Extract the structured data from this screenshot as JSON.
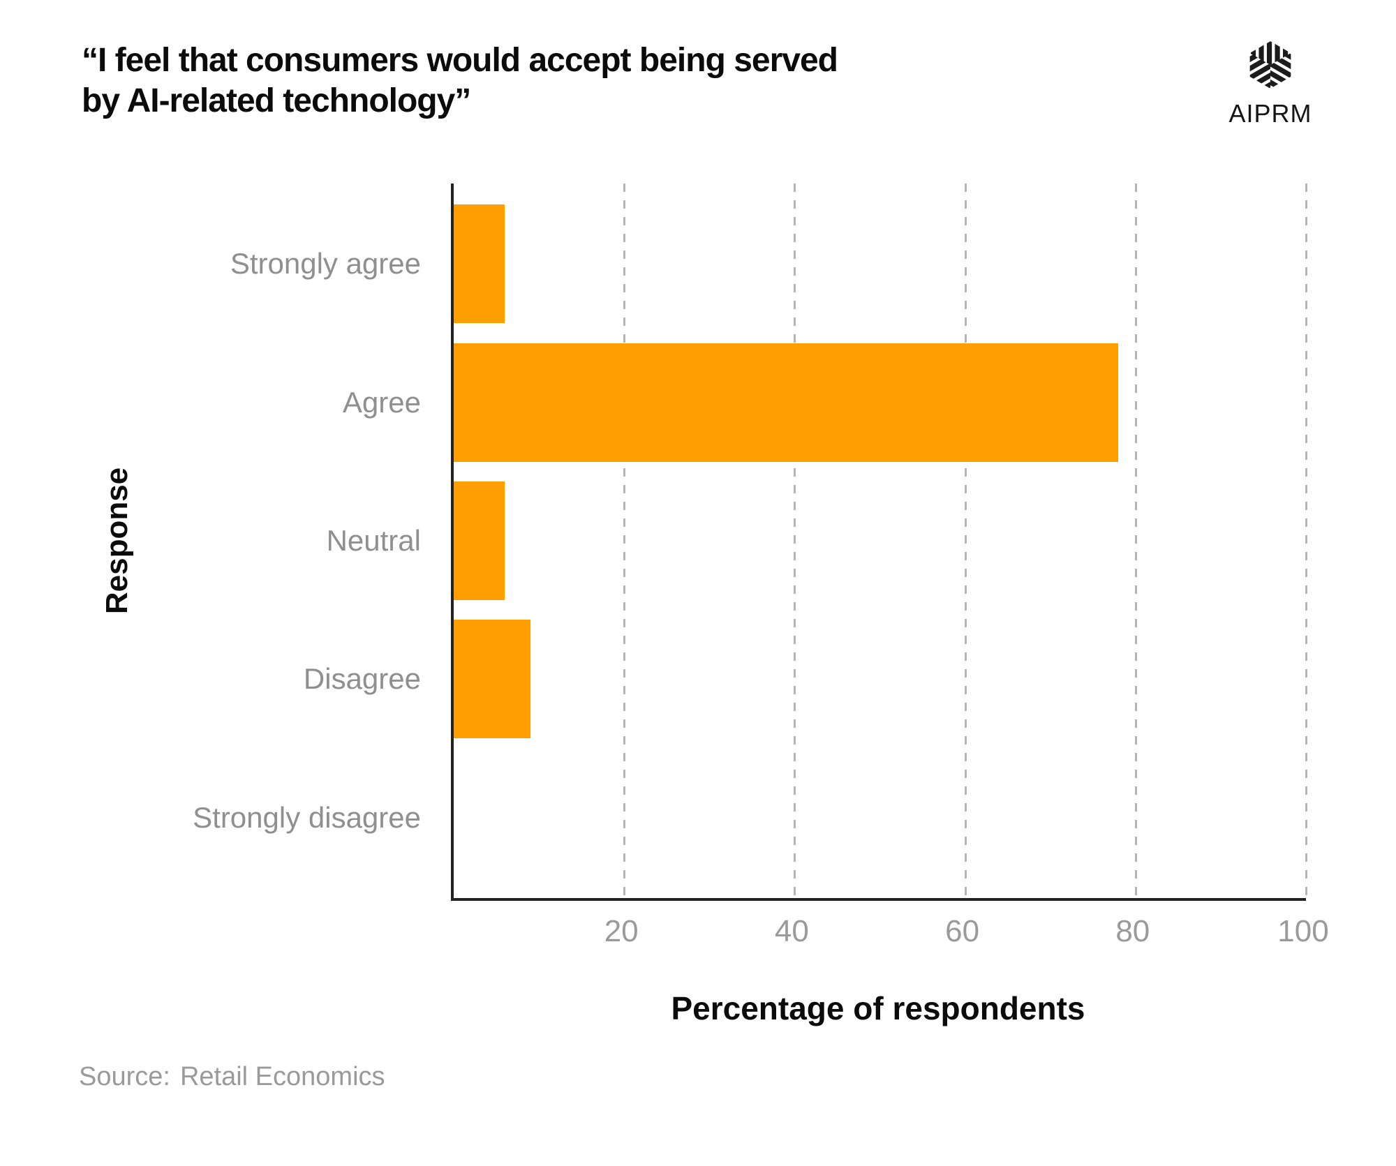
{
  "header": {
    "title": "“I feel that consumers would accept being served\nby AI-related technology”",
    "logo_text": "AIPRM"
  },
  "chart_data": {
    "type": "bar",
    "orientation": "horizontal",
    "title": "“I feel that consumers would accept being served by AI-related technology”",
    "categories": [
      "Strongly agree",
      "Agree",
      "Neutral",
      "Disagree",
      "Strongly disagree"
    ],
    "values": [
      6,
      78,
      6,
      9,
      0
    ],
    "xlabel": "Percentage of respondents",
    "ylabel": "Response",
    "xlim": [
      0,
      100
    ],
    "xticks": [
      20,
      40,
      60,
      80,
      100
    ],
    "grid": "vertical-dashed",
    "legend": "none"
  },
  "colors": {
    "bar": "#ff9e00",
    "axis": "#222222",
    "gridline": "#b4b4b4",
    "category_labels": "#8f8f8f",
    "tick_labels": "#9a9a9a",
    "title_text": "#0b0b0b",
    "logo": "#1c1c1c"
  },
  "footer": {
    "source_label": "Source:",
    "source_name": "Retail Economics"
  }
}
